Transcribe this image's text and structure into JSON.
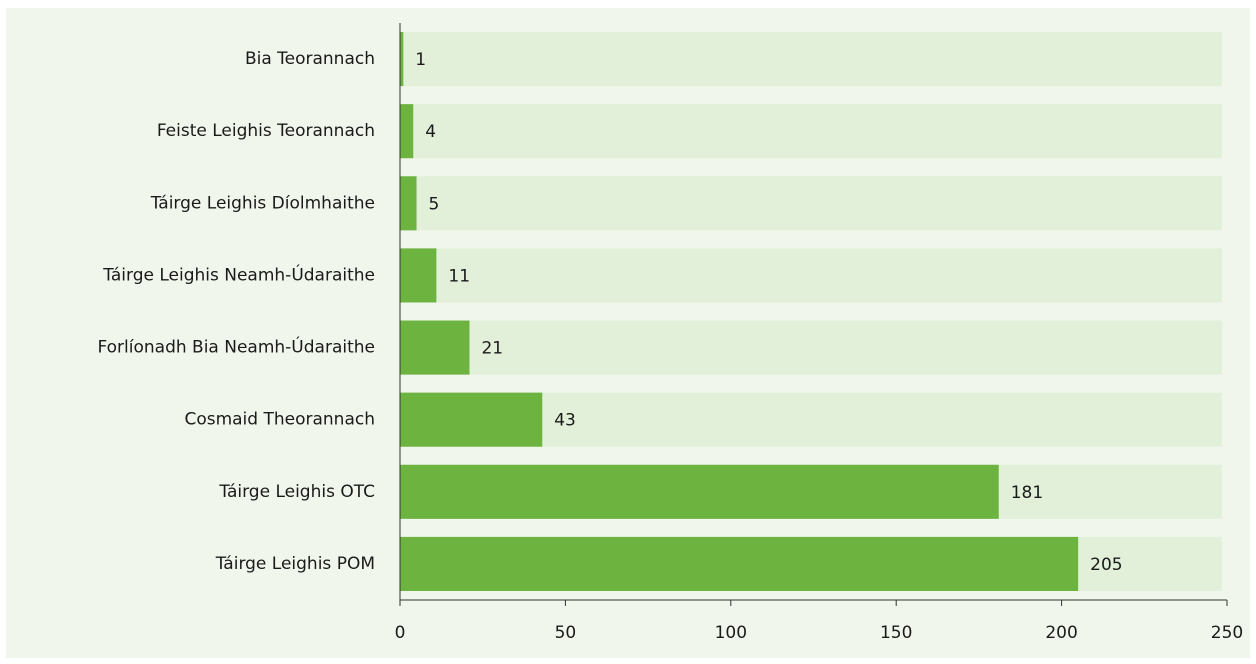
{
  "chart_data": {
    "type": "bar",
    "orientation": "horizontal",
    "categories": [
      "Bia Teorannach",
      "Feiste Leighis Teorannach",
      "Táirge Leighis Díolmhaithe",
      "Táirge Leighis  Neamh-Údaraithe",
      "Forlíonadh Bia Neamh-Údaraithe",
      "Cosmaid Theorannach",
      "Táirge Leighis OTC",
      "Táirge Leighis POM"
    ],
    "values": [
      1,
      4,
      5,
      11,
      21,
      43,
      181,
      205
    ],
    "color": "#6db33f",
    "track_color": "#e2efd9",
    "xlim": [
      0,
      250
    ],
    "xticks": [
      0,
      50,
      100,
      150,
      200,
      250
    ]
  }
}
